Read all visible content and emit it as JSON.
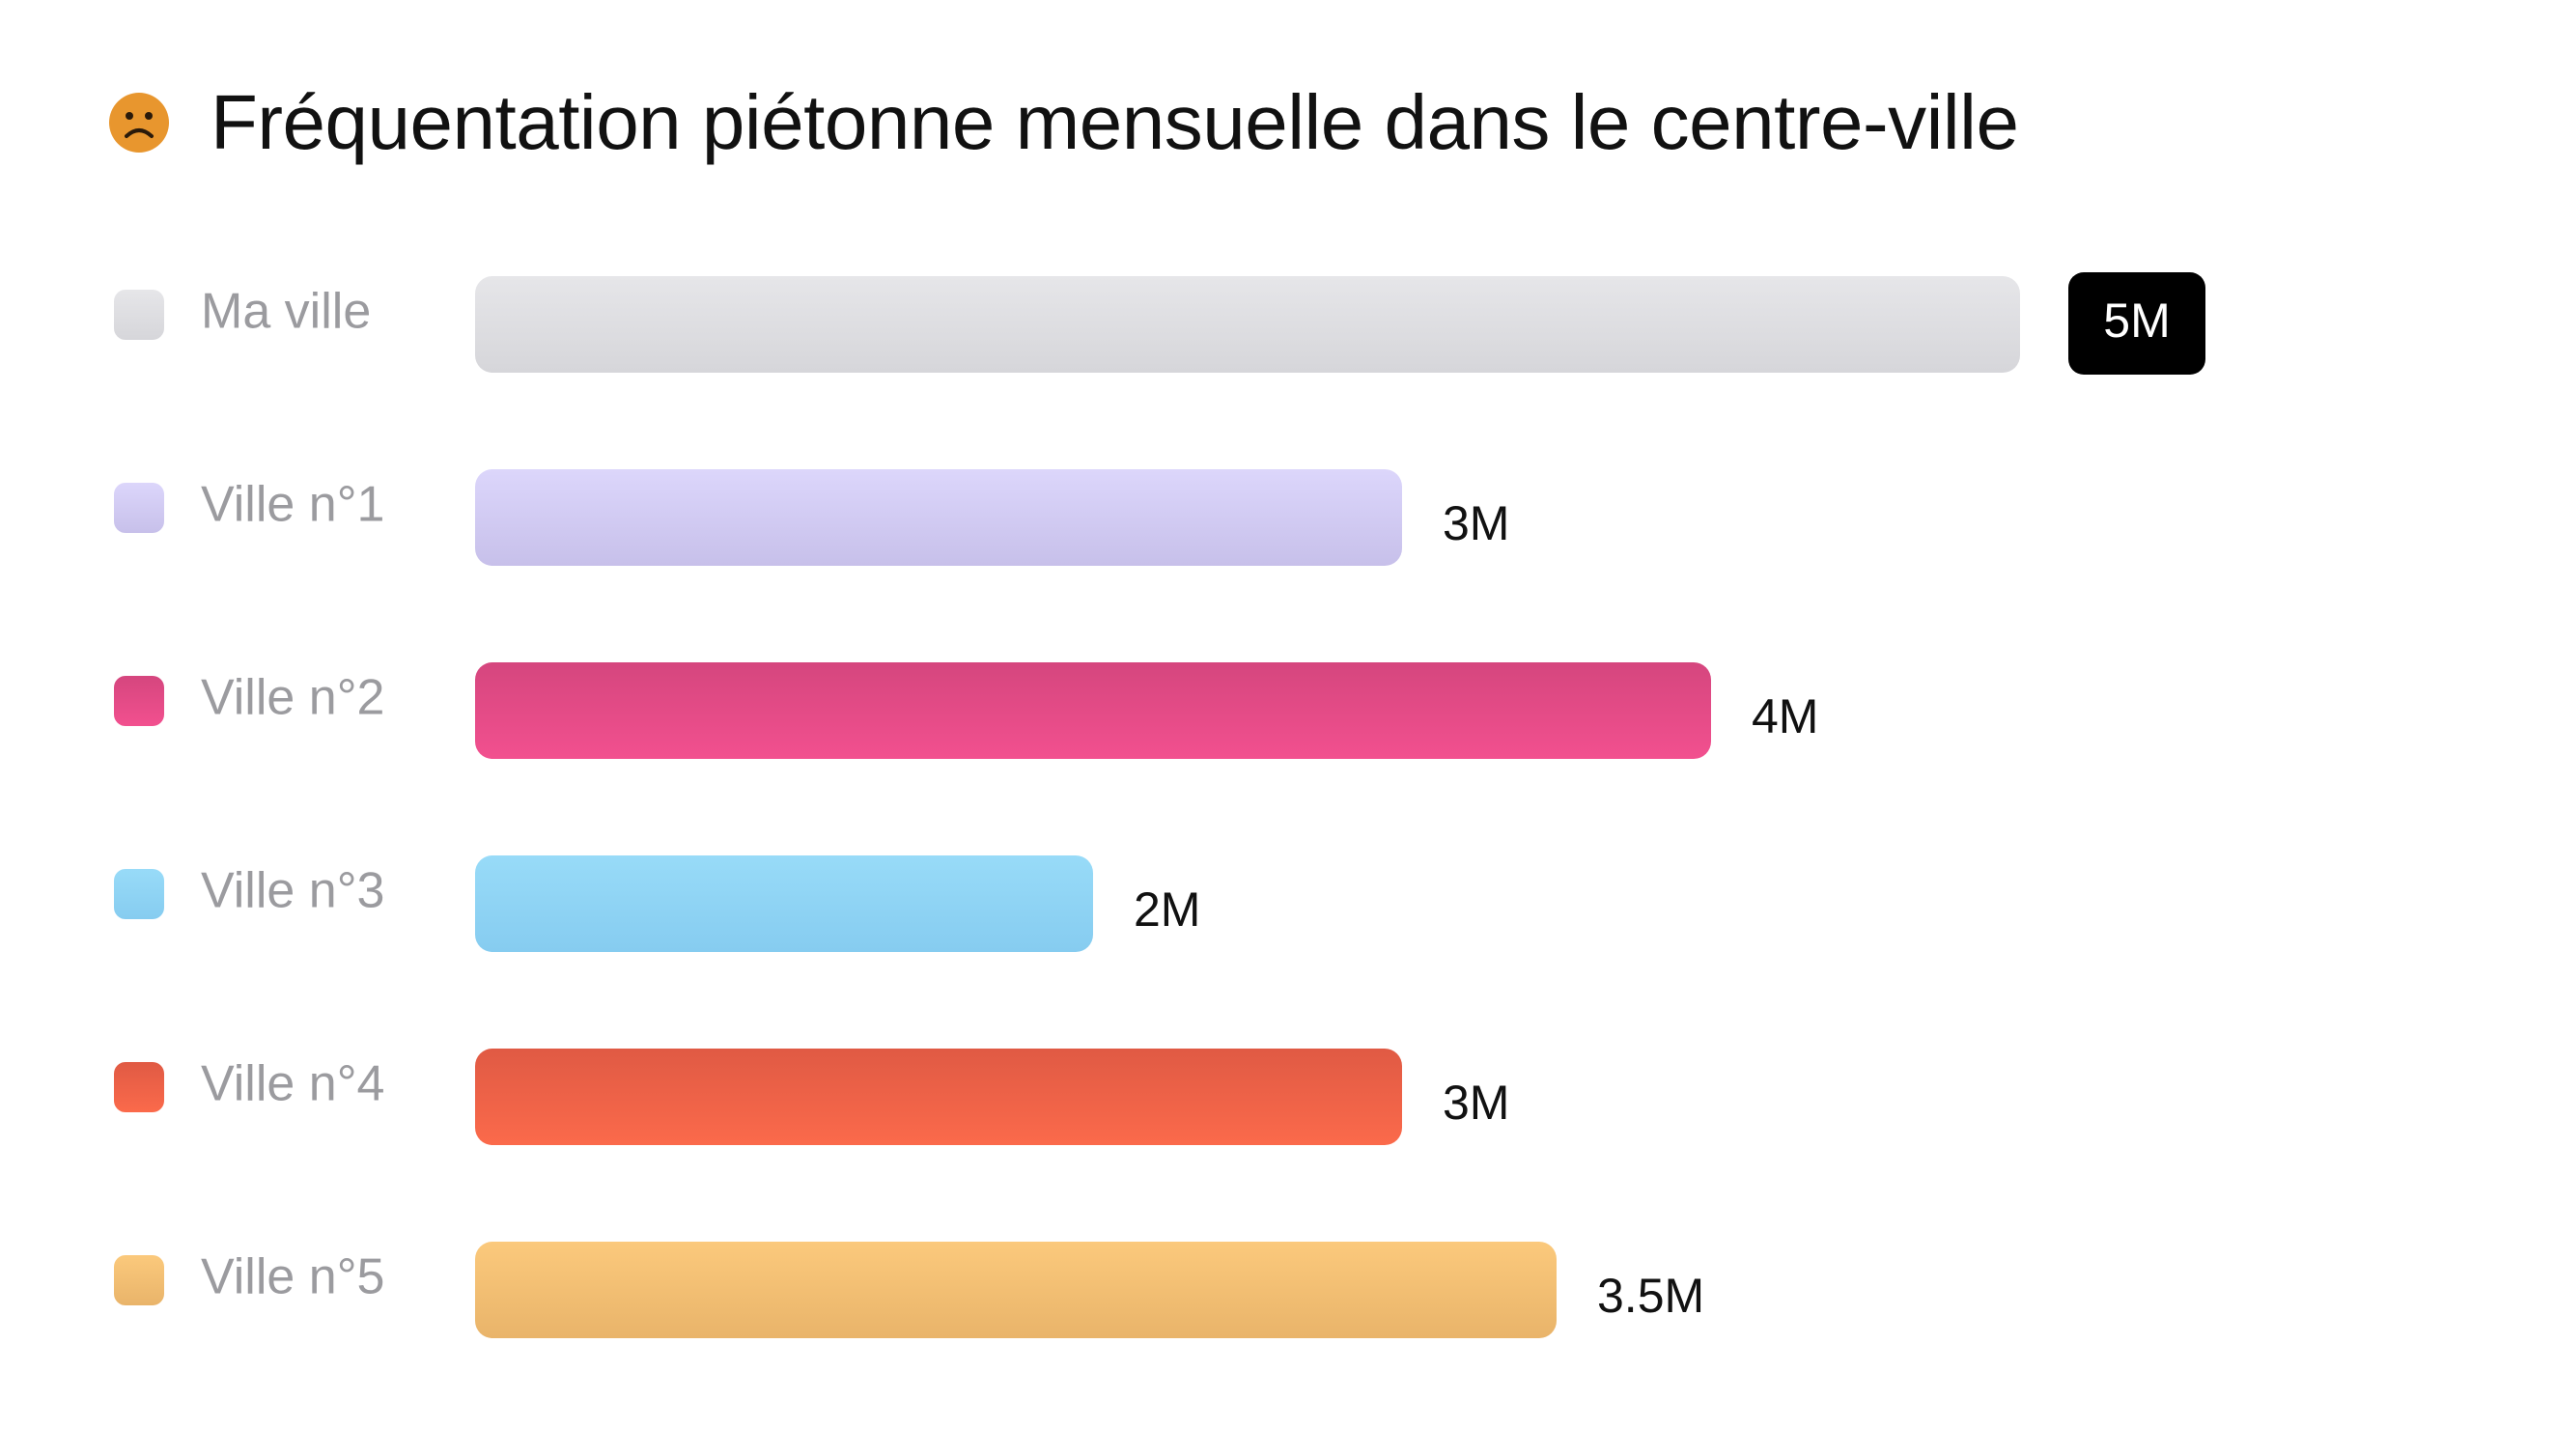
{
  "header": {
    "icon": "sad-face-icon",
    "icon_color": "#E8962E",
    "title": "Fréquentation piétonne mensuelle dans le centre-ville"
  },
  "chart_data": {
    "type": "bar",
    "orientation": "horizontal",
    "title": "Fréquentation piétonne mensuelle dans le centre-ville",
    "xlabel": "",
    "ylabel": "",
    "grid": false,
    "xlim": [
      0,
      5
    ],
    "unit": "M",
    "categories": [
      "Ma ville",
      "Ville n°1",
      "Ville n°2",
      "Ville n°3",
      "Ville n°4",
      "Ville n°5"
    ],
    "values": [
      5,
      3,
      4,
      2,
      3,
      3.5
    ],
    "value_labels": [
      "5M",
      "3M",
      "4M",
      "2M",
      "3M",
      "3.5M"
    ],
    "highlighted_category": "Ma ville",
    "colors": [
      [
        "#e6e6e9",
        "#d6d6da"
      ],
      [
        "#dcd6fb",
        "#c7c0ea"
      ],
      [
        "#d5467e",
        "#f2508f"
      ],
      [
        "#98dbf8",
        "#86ccf0"
      ],
      [
        "#e05a44",
        "#fb6a4b"
      ],
      [
        "#fbc97c",
        "#e9b46a"
      ]
    ]
  }
}
